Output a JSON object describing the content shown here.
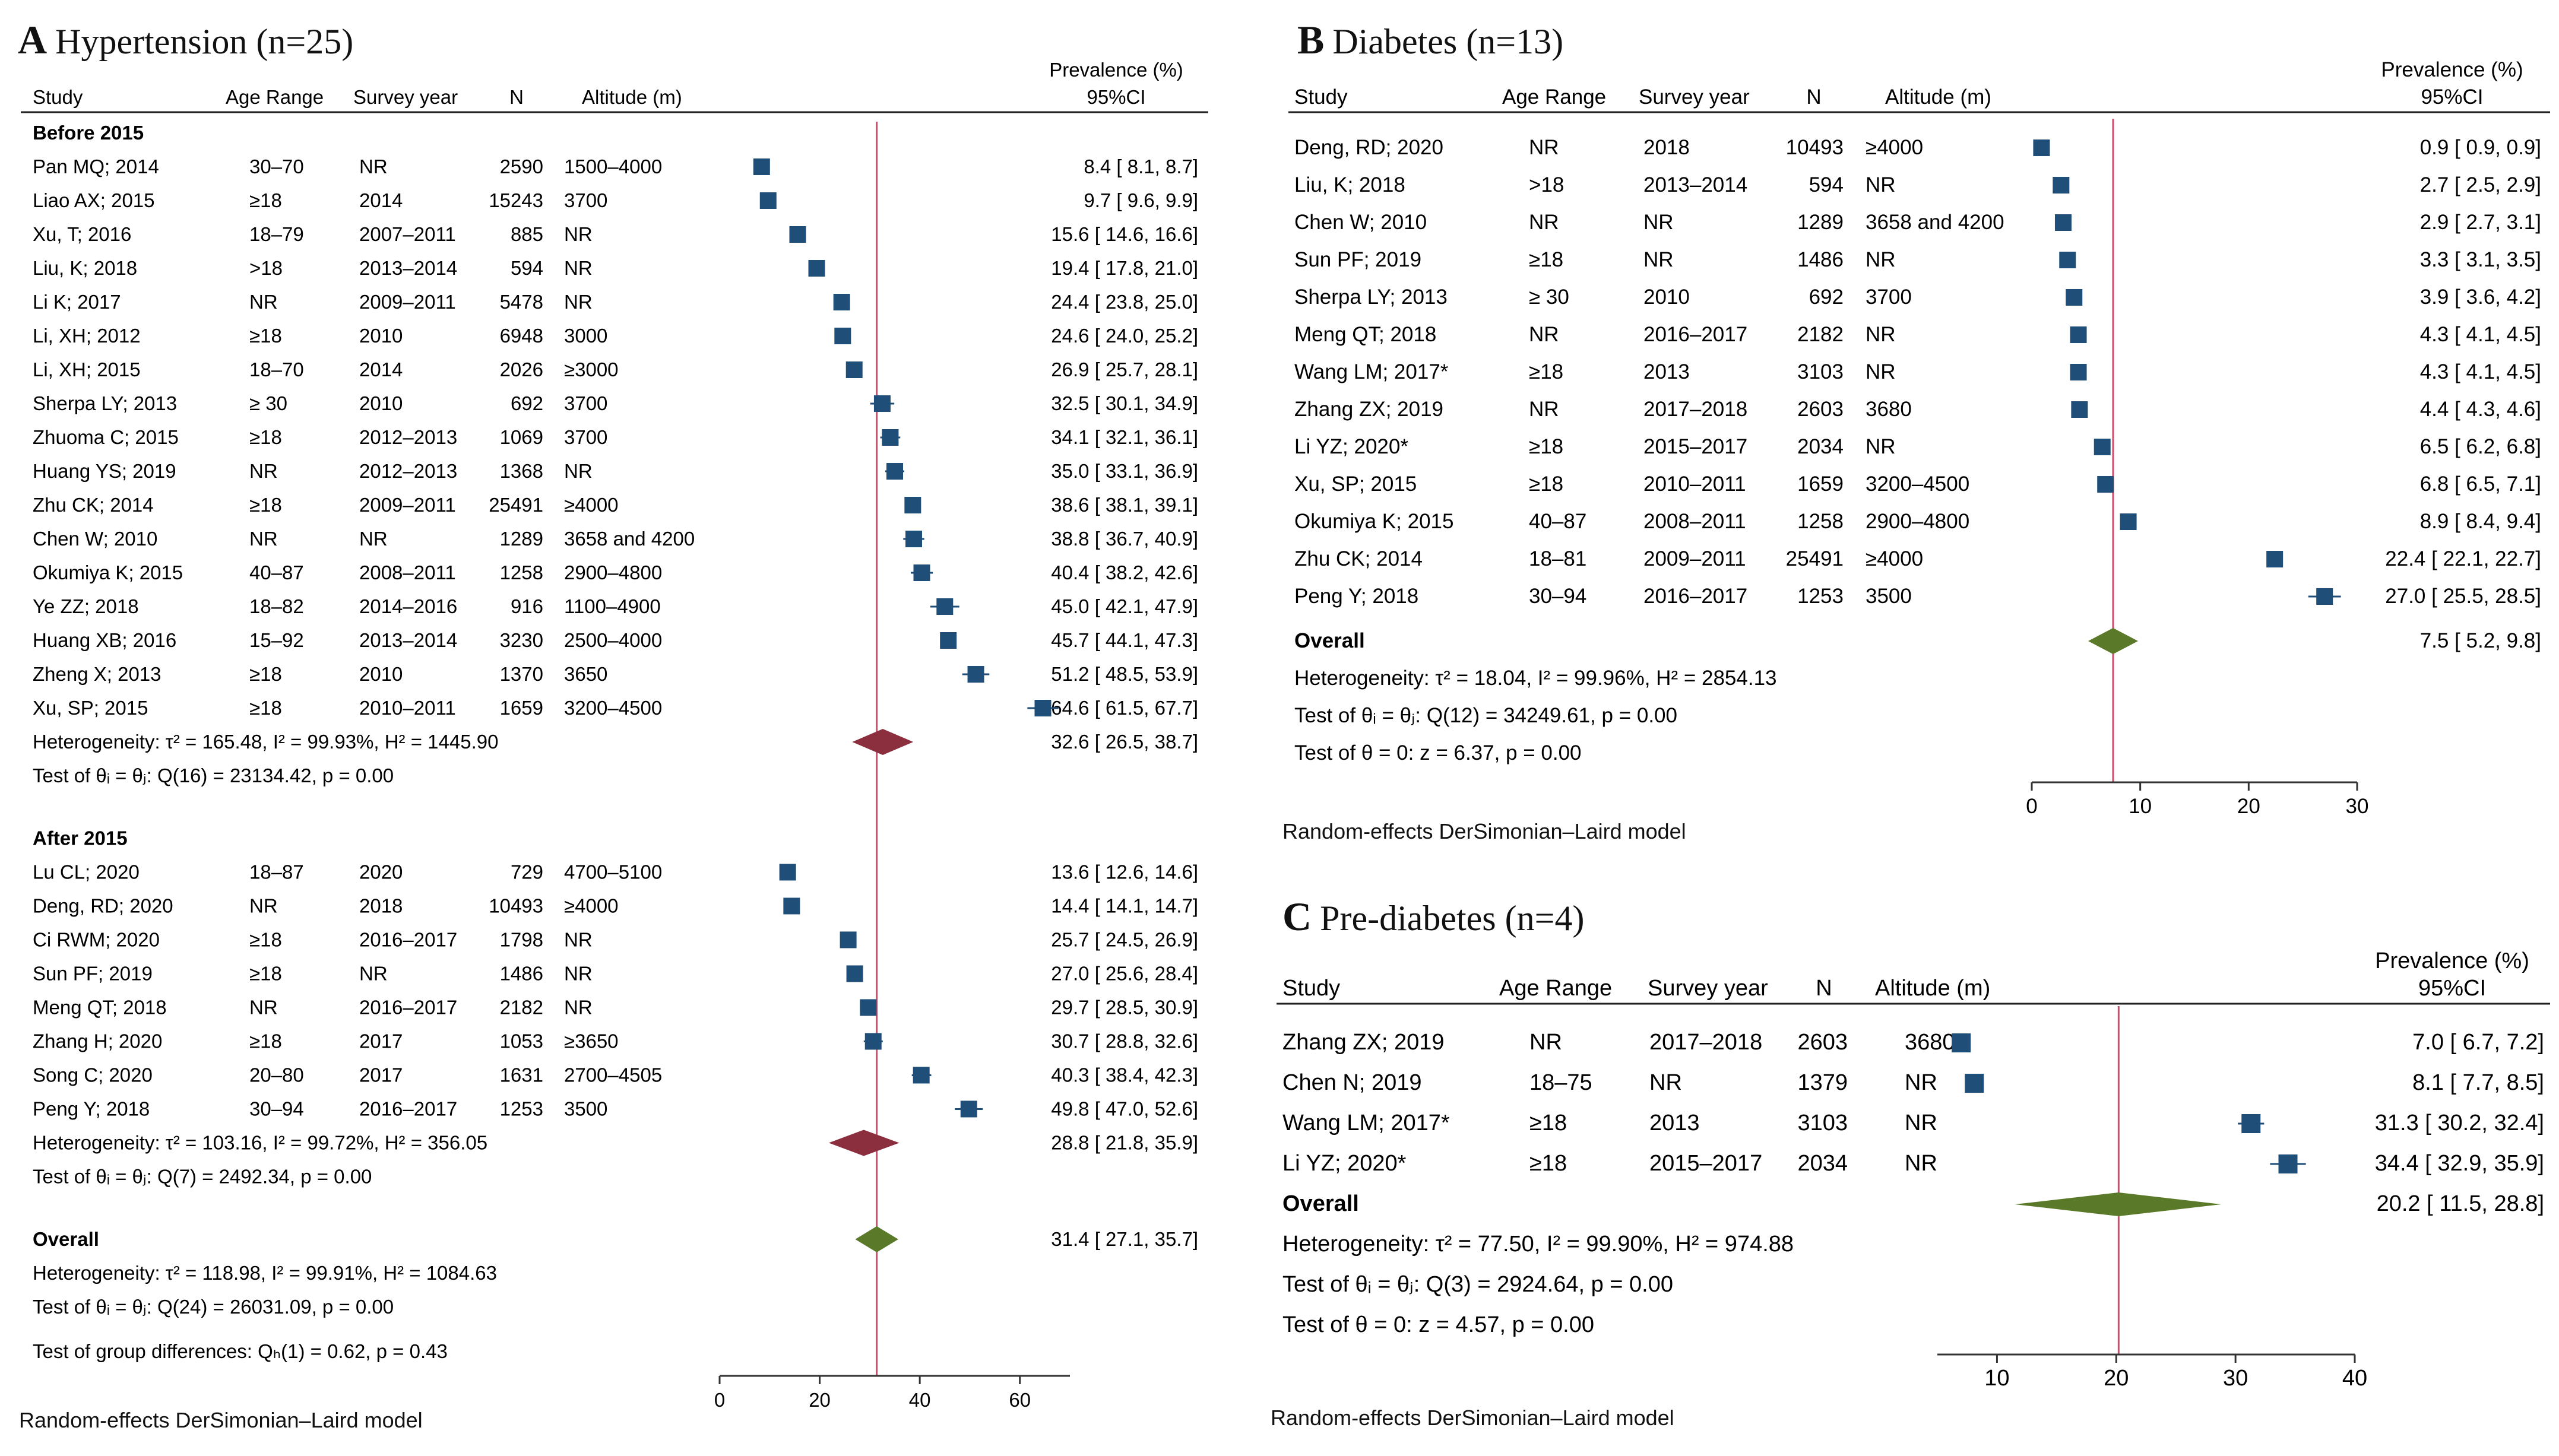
{
  "panels": {
    "A": {
      "letter": "A",
      "title": "Hypertension (n=25)",
      "headers": {
        "study": "Study",
        "age": "Age Range",
        "year": "Survey year",
        "n": "N",
        "alt": "Altitude (m)",
        "prev_line1": "Prevalence (%)",
        "prev_line2": "95%CI"
      },
      "caption": "Random-effects DerSimonian–Laird model"
    },
    "B": {
      "letter": "B",
      "title": "Diabetes (n=13)",
      "headers": {
        "study": "Study",
        "age": "Age Range",
        "year": "Survey year",
        "n": "N",
        "alt": "Altitude (m)",
        "prev_line1": "Prevalence (%)",
        "prev_line2": "95%CI"
      },
      "caption": "Random-effects DerSimonian–Laird model"
    },
    "C": {
      "letter": "C",
      "title": "Pre-diabetes (n=4)",
      "headers": {
        "study": "Study",
        "age": "Age Range",
        "year": "Survey year",
        "n": "N",
        "alt": "Altitude (m)",
        "prev_line1": "Prevalence (%)",
        "prev_line2": "95%CI"
      },
      "caption": "Random-effects DerSimonian–Laird model"
    }
  },
  "colors": {
    "marker": "#1f4e79",
    "subgroup_diamond": "#8b2f3f",
    "overall_diamond": "#5a7a2a",
    "ref_line": "#d04a6a",
    "axis": "#333333"
  },
  "chart_data": [
    {
      "type": "forest",
      "panel": "A",
      "xlim": [
        0,
        70
      ],
      "xticks": [
        0,
        20,
        40,
        60
      ],
      "groups": [
        {
          "label": "Before 2015",
          "studies": [
            {
              "study": "Pan MQ; 2014",
              "age": "30–70",
              "year": "NR",
              "n": "2590",
              "alt": "1500–4000",
              "est": 8.4,
              "lo": 8.1,
              "hi": 8.7,
              "ci": "8.4 [  8.1,   8.7]"
            },
            {
              "study": "Liao AX; 2015",
              "age": "≥18",
              "year": "2014",
              "n": "15243",
              "alt": "3700",
              "est": 9.7,
              "lo": 9.6,
              "hi": 9.9,
              "ci": "9.7 [  9.6,   9.9]"
            },
            {
              "study": "Xu, T; 2016",
              "age": "18–79",
              "year": "2007–2011",
              "n": "885",
              "alt": "NR",
              "est": 15.6,
              "lo": 14.6,
              "hi": 16.6,
              "ci": "15.6 [ 14.6,  16.6]"
            },
            {
              "study": "Liu, K; 2018",
              "age": ">18",
              "year": "2013–2014",
              "n": "594",
              "alt": "NR",
              "est": 19.4,
              "lo": 17.8,
              "hi": 21.0,
              "ci": "19.4 [ 17.8,  21.0]"
            },
            {
              "study": "Li K; 2017",
              "age": "NR",
              "year": "2009–2011",
              "n": "5478",
              "alt": "NR",
              "est": 24.4,
              "lo": 23.8,
              "hi": 25.0,
              "ci": "24.4 [ 23.8,  25.0]"
            },
            {
              "study": "Li, XH; 2012",
              "age": "≥18",
              "year": "2010",
              "n": "6948",
              "alt": "3000",
              "est": 24.6,
              "lo": 24.0,
              "hi": 25.2,
              "ci": "24.6 [ 24.0,  25.2]"
            },
            {
              "study": "Li, XH; 2015",
              "age": "18–70",
              "year": "2014",
              "n": "2026",
              "alt": "≥3000",
              "est": 26.9,
              "lo": 25.7,
              "hi": 28.1,
              "ci": "26.9 [ 25.7,  28.1]"
            },
            {
              "study": "Sherpa LY; 2013",
              "age": "≥ 30",
              "year": "2010",
              "n": "692",
              "alt": "3700",
              "est": 32.5,
              "lo": 30.1,
              "hi": 34.9,
              "ci": "32.5 [ 30.1,  34.9]"
            },
            {
              "study": "Zhuoma C; 2015",
              "age": "≥18",
              "year": "2012–2013",
              "n": "1069",
              "alt": "3700",
              "est": 34.1,
              "lo": 32.1,
              "hi": 36.1,
              "ci": "34.1 [ 32.1,  36.1]"
            },
            {
              "study": "Huang YS; 2019",
              "age": "NR",
              "year": "2012–2013",
              "n": "1368",
              "alt": "NR",
              "est": 35.0,
              "lo": 33.1,
              "hi": 36.9,
              "ci": "35.0 [ 33.1,  36.9]"
            },
            {
              "study": "Zhu CK; 2014",
              "age": "≥18",
              "year": "2009–2011",
              "n": "25491",
              "alt": "≥4000",
              "est": 38.6,
              "lo": 38.1,
              "hi": 39.1,
              "ci": "38.6 [ 38.1,  39.1]"
            },
            {
              "study": "Chen W; 2010",
              "age": "NR",
              "year": "NR",
              "n": "1289",
              "alt": "3658 and 4200",
              "est": 38.8,
              "lo": 36.7,
              "hi": 40.9,
              "ci": "38.8 [ 36.7,  40.9]"
            },
            {
              "study": "Okumiya K; 2015",
              "age": "40–87",
              "year": "2008–2011",
              "n": "1258",
              "alt": "2900–4800",
              "est": 40.4,
              "lo": 38.2,
              "hi": 42.6,
              "ci": "40.4 [ 38.2,  42.6]"
            },
            {
              "study": "Ye ZZ; 2018",
              "age": "18–82",
              "year": "2014–2016",
              "n": "916",
              "alt": "1100–4900",
              "est": 45.0,
              "lo": 42.1,
              "hi": 47.9,
              "ci": "45.0 [ 42.1,  47.9]"
            },
            {
              "study": "Huang XB; 2016",
              "age": "15–92",
              "year": "2013–2014",
              "n": "3230",
              "alt": "2500–4000",
              "est": 45.7,
              "lo": 44.1,
              "hi": 47.3,
              "ci": "45.7 [ 44.1,  47.3]"
            },
            {
              "study": "Zheng X; 2013",
              "age": "≥18",
              "year": "2010",
              "n": "1370",
              "alt": "3650",
              "est": 51.2,
              "lo": 48.5,
              "hi": 53.9,
              "ci": "51.2 [ 48.5,  53.9]"
            },
            {
              "study": "Xu, SP; 2015",
              "age": "≥18",
              "year": "2010–2011",
              "n": "1659",
              "alt": "3200–4500",
              "est": 64.6,
              "lo": 61.5,
              "hi": 67.7,
              "ci": "64.6 [ 61.5,  67.7]"
            }
          ],
          "heterogeneity": "Heterogeneity: τ² = 165.48, I² = 99.93%, H² = 1445.90",
          "test": "Test of θᵢ = θⱼ: Q(16) = 23134.42, p = 0.00",
          "pooled": {
            "est": 32.6,
            "lo": 26.5,
            "hi": 38.7,
            "ci": "32.6 [ 26.5,  38.7]"
          }
        },
        {
          "label": "After 2015",
          "studies": [
            {
              "study": "Lu CL; 2020",
              "age": "18–87",
              "year": "2020",
              "n": "729",
              "alt": "4700–5100",
              "est": 13.6,
              "lo": 12.6,
              "hi": 14.6,
              "ci": "13.6 [ 12.6,  14.6]"
            },
            {
              "study": "Deng, RD; 2020",
              "age": "NR",
              "year": "2018",
              "n": "10493",
              "alt": "≥4000",
              "est": 14.4,
              "lo": 14.1,
              "hi": 14.7,
              "ci": "14.4 [ 14.1,  14.7]"
            },
            {
              "study": "Ci RWM; 2020",
              "age": "≥18",
              "year": "2016–2017",
              "n": "1798",
              "alt": "NR",
              "est": 25.7,
              "lo": 24.5,
              "hi": 26.9,
              "ci": "25.7 [ 24.5,  26.9]"
            },
            {
              "study": "Sun PF; 2019",
              "age": "≥18",
              "year": "NR",
              "n": "1486",
              "alt": "NR",
              "est": 27.0,
              "lo": 25.6,
              "hi": 28.4,
              "ci": "27.0 [ 25.6,  28.4]"
            },
            {
              "study": "Meng QT; 2018",
              "age": "NR",
              "year": "2016–2017",
              "n": "2182",
              "alt": "NR",
              "est": 29.7,
              "lo": 28.5,
              "hi": 30.9,
              "ci": "29.7 [ 28.5,  30.9]"
            },
            {
              "study": "Zhang H; 2020",
              "age": "≥18",
              "year": "2017",
              "n": "1053",
              "alt": "≥3650",
              "est": 30.7,
              "lo": 28.8,
              "hi": 32.6,
              "ci": "30.7 [ 28.8,  32.6]"
            },
            {
              "study": "Song C;  2020",
              "age": "20–80",
              "year": "2017",
              "n": "1631",
              "alt": "2700–4505",
              "est": 40.3,
              "lo": 38.4,
              "hi": 42.3,
              "ci": "40.3 [ 38.4,  42.3]"
            },
            {
              "study": "Peng Y; 2018",
              "age": "30–94",
              "year": "2016–2017",
              "n": "1253",
              "alt": "3500",
              "est": 49.8,
              "lo": 47.0,
              "hi": 52.6,
              "ci": "49.8 [ 47.0,  52.6]"
            }
          ],
          "heterogeneity": "Heterogeneity: τ² = 103.16, I² = 99.72%, H² = 356.05",
          "test": "Test of θᵢ = θⱼ: Q(7) = 2492.34, p = 0.00",
          "pooled": {
            "est": 28.8,
            "lo": 21.8,
            "hi": 35.9,
            "ci": "28.8 [ 21.8,  35.9]"
          }
        }
      ],
      "overall": {
        "label": "Overall",
        "est": 31.4,
        "lo": 27.1,
        "hi": 35.7,
        "ci": "31.4 [ 27.1,  35.7]",
        "heterogeneity": "Heterogeneity: τ² = 118.98, I² = 99.91%, H² = 1084.63",
        "test": "Test of θᵢ = θⱼ: Q(24) = 26031.09, p = 0.00",
        "group_test": "Test of group differences: Qₕ(1) = 0.62, p = 0.43"
      }
    },
    {
      "type": "forest",
      "panel": "B",
      "xlim": [
        0,
        30
      ],
      "xticks": [
        0,
        10,
        20,
        30
      ],
      "studies": [
        {
          "study": "Deng, RD; 2020",
          "age": "NR",
          "year": "2018",
          "n": "10493",
          "alt": "≥4000",
          "est": 0.9,
          "lo": 0.9,
          "hi": 0.9,
          "ci": "0.9 [  0.9,   0.9]"
        },
        {
          "study": "Liu, K; 2018",
          "age": ">18",
          "year": "2013–2014",
          "n": "594",
          "alt": "NR",
          "est": 2.7,
          "lo": 2.5,
          "hi": 2.9,
          "ci": "2.7 [  2.5,   2.9]"
        },
        {
          "study": "Chen W; 2010",
          "age": "NR",
          "year": "NR",
          "n": "1289",
          "alt": "3658 and 4200",
          "est": 2.9,
          "lo": 2.7,
          "hi": 3.1,
          "ci": "2.9 [  2.7,   3.1]"
        },
        {
          "study": "Sun PF; 2019",
          "age": "≥18",
          "year": "NR",
          "n": "1486",
          "alt": "NR",
          "est": 3.3,
          "lo": 3.1,
          "hi": 3.5,
          "ci": "3.3 [  3.1,   3.5]"
        },
        {
          "study": "Sherpa LY; 2013",
          "age": "≥ 30",
          "year": "2010",
          "n": "692",
          "alt": "3700",
          "est": 3.9,
          "lo": 3.6,
          "hi": 4.2,
          "ci": "3.9 [  3.6,   4.2]"
        },
        {
          "study": "Meng QT; 2018",
          "age": "NR",
          "year": "2016–2017",
          "n": "2182",
          "alt": "NR",
          "est": 4.3,
          "lo": 4.1,
          "hi": 4.5,
          "ci": "4.3 [  4.1,   4.5]"
        },
        {
          "study": "Wang LM; 2017*",
          "age": "≥18",
          "year": "2013",
          "n": "3103",
          "alt": "NR",
          "est": 4.3,
          "lo": 4.1,
          "hi": 4.5,
          "ci": "4.3 [  4.1,   4.5]"
        },
        {
          "study": "Zhang ZX; 2019",
          "age": "NR",
          "year": "2017–2018",
          "n": "2603",
          "alt": "3680",
          "est": 4.4,
          "lo": 4.3,
          "hi": 4.6,
          "ci": "4.4 [  4.3,   4.6]"
        },
        {
          "study": "Li YZ; 2020*",
          "age": "≥18",
          "year": "2015–2017",
          "n": "2034",
          "alt": "NR",
          "est": 6.5,
          "lo": 6.2,
          "hi": 6.8,
          "ci": "6.5 [  6.2,   6.8]"
        },
        {
          "study": "Xu, SP; 2015",
          "age": "≥18",
          "year": "2010–2011",
          "n": "1659",
          "alt": "3200–4500",
          "est": 6.8,
          "lo": 6.5,
          "hi": 7.1,
          "ci": "6.8 [  6.5,   7.1]"
        },
        {
          "study": "Okumiya K; 2015",
          "age": "40–87",
          "year": "2008–2011",
          "n": "1258",
          "alt": "2900–4800",
          "est": 8.9,
          "lo": 8.4,
          "hi": 9.4,
          "ci": "8.9 [  8.4,   9.4]"
        },
        {
          "study": "Zhu CK; 2014",
          "age": "18–81",
          "year": "2009–2011",
          "n": "25491",
          "alt": "≥4000",
          "est": 22.4,
          "lo": 22.1,
          "hi": 22.7,
          "ci": "22.4 [ 22.1,  22.7]"
        },
        {
          "study": "Peng Y; 2018",
          "age": "30–94",
          "year": "2016–2017",
          "n": "1253",
          "alt": "3500",
          "est": 27.0,
          "lo": 25.5,
          "hi": 28.5,
          "ci": "27.0 [ 25.5,  28.5]"
        }
      ],
      "overall": {
        "label": "Overall",
        "est": 7.5,
        "lo": 5.2,
        "hi": 9.8,
        "ci": "7.5 [  5.2,   9.8]",
        "heterogeneity": "Heterogeneity: τ² = 18.04, I² = 99.96%, H² = 2854.13",
        "test": "Test of θᵢ = θⱼ: Q(12) = 34249.61, p = 0.00",
        "z_test": "Test of θ = 0: z = 6.37, p = 0.00"
      }
    },
    {
      "type": "forest",
      "panel": "C",
      "xlim": [
        5,
        40
      ],
      "xticks": [
        10,
        20,
        30,
        40
      ],
      "studies": [
        {
          "study": "Zhang ZX; 2019",
          "age": "NR",
          "year": "2017–2018",
          "n": "2603",
          "alt": "3680",
          "est": 7.0,
          "lo": 6.7,
          "hi": 7.2,
          "ci": "7.0 [  6.7,   7.2]"
        },
        {
          "study": "Chen N; 2019",
          "age": "18–75",
          "year": "NR",
          "n": "1379",
          "alt": "NR",
          "est": 8.1,
          "lo": 7.7,
          "hi": 8.5,
          "ci": "8.1 [  7.7,   8.5]"
        },
        {
          "study": "Wang LM; 2017*",
          "age": "≥18",
          "year": "2013",
          "n": "3103",
          "alt": "NR",
          "est": 31.3,
          "lo": 30.2,
          "hi": 32.4,
          "ci": "31.3 [ 30.2,  32.4]"
        },
        {
          "study": "Li YZ; 2020*",
          "age": "≥18",
          "year": "2015–2017",
          "n": "2034",
          "alt": "NR",
          "est": 34.4,
          "lo": 32.9,
          "hi": 35.9,
          "ci": "34.4 [ 32.9,  35.9]"
        }
      ],
      "overall": {
        "label": "Overall",
        "est": 20.2,
        "lo": 11.5,
        "hi": 28.8,
        "ci": "20.2 [ 11.5,  28.8]",
        "heterogeneity": "Heterogeneity: τ² = 77.50, I² = 99.90%, H² = 974.88",
        "test": "Test of θᵢ = θⱼ: Q(3) = 2924.64, p = 0.00",
        "z_test": "Test of θ = 0: z = 4.57, p = 0.00"
      }
    }
  ]
}
